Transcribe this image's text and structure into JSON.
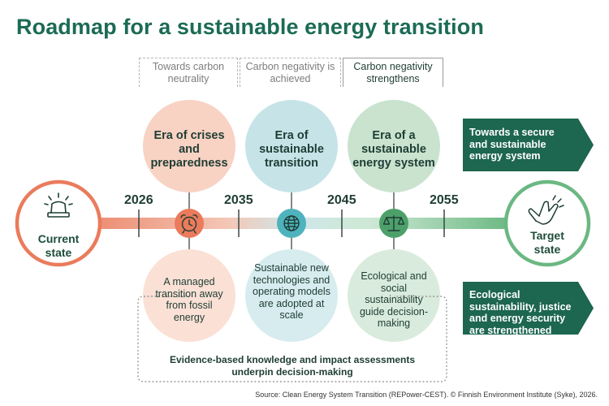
{
  "title": "Roadmap for a sustainable energy transition",
  "phases": [
    {
      "label": "Towards carbon neutrality"
    },
    {
      "label": "Carbon negativity is achieved"
    },
    {
      "label": "Carbon negativity strengthens"
    }
  ],
  "years": [
    "2026",
    "2035",
    "2045",
    "2055"
  ],
  "current_state": "Current state",
  "target_state": "Target state",
  "eras": [
    {
      "title": "Era of crises and preparedness",
      "description": "A managed transition away from fossil energy",
      "icon": "alarm-clock-icon",
      "color": "#f8d2c3",
      "lower_color": "#fbe0d5",
      "node_color": "#ea7b5c"
    },
    {
      "title": "Era of sustainable transition",
      "description": "Sustainable new technologies and operating models are adopted at scale",
      "icon": "globe-icon",
      "color": "#c6e4e8",
      "lower_color": "#d7ecef",
      "node_color": "#4eb3bd"
    },
    {
      "title": "Era of a sustainable energy system",
      "description": "Ecological and social sustainability guide decision-making",
      "icon": "scales-icon",
      "color": "#c9e3cf",
      "lower_color": "#d9ebdc",
      "node_color": "#4da06a"
    }
  ],
  "goals": [
    {
      "text": "Towards a secure and sustainable energy system"
    },
    {
      "text": "Ecological sustainability, justice and energy security are strengthened"
    }
  ],
  "evidence": "Evidence-based knowledge and impact assessments underpin decision-making",
  "source": "Source: Clean Energy System Transition (REPower-CEST). © Finnish Environment Institute (Syke), 2026.",
  "colors": {
    "title": "#1c6b55",
    "dark_green": "#1d6650",
    "coral": "#ea7b5c",
    "teal": "#4eb3bd",
    "green": "#4da06a",
    "target_green": "#6bb882"
  }
}
